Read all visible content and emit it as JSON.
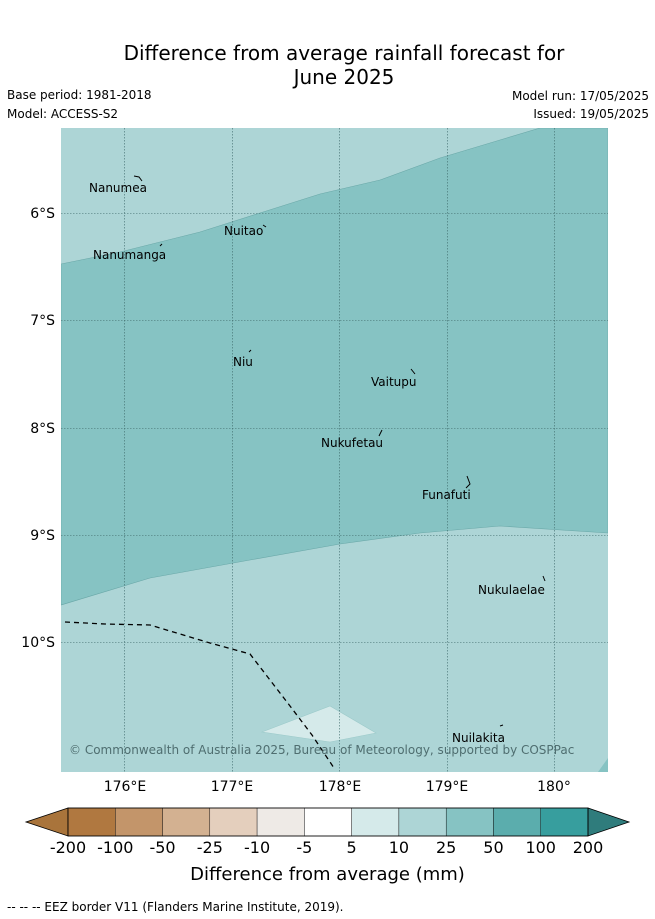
{
  "header": {
    "title_line1": "Difference from average rainfall forecast for",
    "title_line2": "June 2025",
    "base_period": "Base period: 1981-2018",
    "model": "Model: ACCESS-S2",
    "model_run": "Model run: 17/05/2025",
    "issued": "Issued: 19/05/2025"
  },
  "map": {
    "lat_ticks": [
      "6°S",
      "7°S",
      "8°S",
      "9°S",
      "10°S"
    ],
    "lon_ticks": [
      "176°E",
      "177°E",
      "178°E",
      "179°E",
      "180°"
    ],
    "places": [
      {
        "name": "Nanumea"
      },
      {
        "name": "Nuitao"
      },
      {
        "name": "Nanumanga"
      },
      {
        "name": "Niu"
      },
      {
        "name": "Vaitupu"
      },
      {
        "name": "Nukufetau"
      },
      {
        "name": "Funafuti"
      },
      {
        "name": "Nukulaelae"
      },
      {
        "name": "Nuilakita"
      }
    ],
    "copyright": "© Commonwealth of Australia 2025, Bureau of Meteorology, supported by COSPPac",
    "zone_colors": {
      "band_10_25": "#add5d6",
      "band_25_50": "#86c3c3",
      "band_5_10": "#d5eaea"
    }
  },
  "colorbar": {
    "ticks": [
      "-200",
      "-100",
      "-50",
      "-25",
      "-10",
      "-5",
      "5",
      "10",
      "25",
      "50",
      "100",
      "200"
    ],
    "colors": [
      "#a9743b",
      "#b07840",
      "#c3956a",
      "#d3b191",
      "#e4cfbd",
      "#eeeae6",
      "#ffffff",
      "#d5eaea",
      "#add5d6",
      "#86c3c3",
      "#5badad",
      "#379e9e",
      "#2f7c7c"
    ],
    "label": "Difference from average (mm)"
  },
  "footer": {
    "legend": "--  --  -- EEZ border V11 (Flanders Marine Institute, 2019)."
  }
}
